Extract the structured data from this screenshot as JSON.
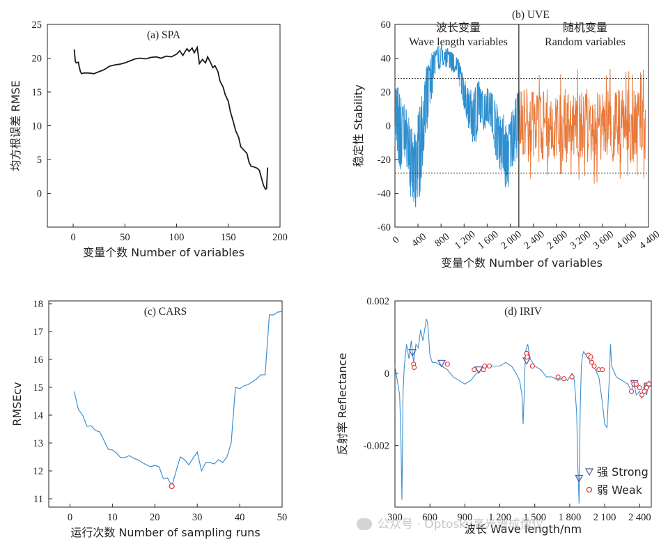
{
  "chart_data": [
    {
      "id": "spa",
      "type": "line",
      "title": "(a) SPA",
      "xlabel": "变量个数 Number of variables",
      "ylabel": "均方根误差 RMSE",
      "xlim": [
        -25,
        200
      ],
      "ylim": [
        -5,
        25
      ],
      "xticks": [
        0,
        50,
        100,
        150,
        200
      ],
      "yticks": [
        0,
        5,
        10,
        15,
        20,
        25
      ],
      "line_color": "#1a1a1a",
      "series": [
        {
          "name": "RMSE",
          "x": [
            1,
            2,
            3,
            5,
            6,
            7,
            8,
            10,
            15,
            20,
            25,
            30,
            35,
            40,
            45,
            50,
            55,
            60,
            65,
            70,
            75,
            80,
            85,
            90,
            95,
            100,
            103,
            106,
            110,
            112,
            115,
            117,
            120,
            122,
            125,
            128,
            130,
            133,
            135,
            137,
            140,
            142,
            145,
            147,
            150,
            152,
            155,
            157,
            160,
            162,
            165,
            168,
            170,
            172,
            175,
            178,
            180,
            182,
            184,
            186,
            187,
            188
          ],
          "y": [
            21.3,
            19.5,
            19.3,
            19.4,
            18.6,
            18.0,
            17.7,
            17.8,
            17.8,
            17.7,
            18.0,
            18.3,
            18.8,
            19.0,
            19.1,
            19.3,
            19.6,
            19.9,
            20.0,
            19.9,
            20.1,
            20.2,
            20.0,
            20.3,
            20.2,
            20.6,
            21.1,
            20.4,
            21.4,
            21.0,
            21.5,
            20.8,
            21.6,
            19.2,
            19.8,
            19.3,
            20.2,
            19.3,
            18.6,
            18.9,
            18.0,
            16.6,
            15.7,
            14.6,
            13.6,
            12.1,
            10.5,
            9.3,
            8.3,
            6.9,
            6.4,
            5.9,
            4.6,
            4.0,
            3.9,
            3.7,
            3.4,
            2.3,
            1.2,
            0.6,
            0.7,
            3.8
          ]
        }
      ]
    },
    {
      "id": "uve",
      "type": "line",
      "title": "(b) UVE",
      "xlabel": "变量个数 Number of variables",
      "ylabel": "稳定性 Stability",
      "xlim": [
        0,
        4400
      ],
      "ylim": [
        -60,
        60
      ],
      "xticks": [
        0,
        400,
        800,
        1200,
        1600,
        2000,
        2400,
        2800,
        3200,
        3600,
        4000,
        4400
      ],
      "xtick_labels": [
        "0",
        "400",
        "800",
        "1 200",
        "1 600",
        "2 000",
        "2 400",
        "2 800",
        "3 200",
        "3 600",
        "4 000",
        "4 400"
      ],
      "yticks": [
        -60,
        -40,
        -20,
        0,
        20,
        40,
        60
      ],
      "divider_x": 2150,
      "thresholds": [
        28,
        -28
      ],
      "region_labels": [
        {
          "zh": "波长变量",
          "en": "Wave length variables"
        },
        {
          "zh": "随机变量",
          "en": "Random variables"
        }
      ],
      "series": [
        {
          "name": "Wave length variables",
          "color": "#2e8fd0",
          "x_range": [
            0,
            2150
          ],
          "envelope_x": [
            0,
            50,
            100,
            150,
            200,
            250,
            300,
            350,
            400,
            450,
            500,
            550,
            600,
            650,
            700,
            750,
            800,
            850,
            900,
            950,
            1000,
            1050,
            1100,
            1150,
            1200,
            1250,
            1300,
            1350,
            1400,
            1450,
            1500,
            1550,
            1600,
            1650,
            1700,
            1750,
            1800,
            1850,
            1900,
            1950,
            2000,
            2050,
            2100,
            2150
          ],
          "envelope_low": [
            -15,
            -25,
            -30,
            -18,
            -22,
            -38,
            -48,
            -52,
            -45,
            -40,
            -15,
            -6,
            10,
            18,
            30,
            32,
            35,
            36,
            33,
            34,
            30,
            33,
            26,
            20,
            8,
            2,
            -5,
            -12,
            -10,
            -5,
            0,
            -3,
            2,
            0,
            -10,
            -18,
            -28,
            -30,
            -35,
            -42,
            -30,
            -25,
            -20,
            -18
          ],
          "envelope_high": [
            30,
            25,
            18,
            15,
            10,
            5,
            -2,
            -5,
            8,
            15,
            25,
            35,
            40,
            45,
            46,
            48,
            48,
            46,
            47,
            44,
            45,
            42,
            40,
            34,
            28,
            25,
            22,
            20,
            25,
            28,
            22,
            20,
            25,
            22,
            20,
            15,
            10,
            12,
            5,
            0,
            5,
            15,
            20,
            22
          ]
        },
        {
          "name": "Random variables",
          "color": "#e8793a",
          "x_range": [
            2150,
            4350
          ],
          "amplitude_typical": 22,
          "amplitude_max": 35
        }
      ]
    },
    {
      "id": "cars",
      "type": "line",
      "title": "(c) CARS",
      "xlabel": "运行次数 Number of sampling runs",
      "ylabel": "RMSEcv",
      "xlim": [
        -5,
        50
      ],
      "ylim": [
        10.7,
        18.1
      ],
      "xticks": [
        0,
        10,
        20,
        30,
        40,
        50
      ],
      "yticks": [
        11,
        12,
        13,
        14,
        15,
        16,
        17,
        18
      ],
      "line_color": "#3a8fd0",
      "min_marker": {
        "x": 24,
        "y": 11.45,
        "color": "#e03030"
      },
      "series": [
        {
          "name": "RMSEcv",
          "x": [
            1,
            2,
            3,
            4,
            5,
            6,
            7,
            8,
            9,
            10,
            11,
            12,
            13,
            14,
            15,
            16,
            17,
            18,
            19,
            20,
            21,
            22,
            23,
            24,
            25,
            26,
            27,
            28,
            29,
            30,
            31,
            32,
            33,
            34,
            35,
            36,
            37,
            38,
            39,
            40,
            41,
            42,
            43,
            44,
            45,
            46,
            47,
            48,
            49,
            50
          ],
          "y": [
            14.85,
            14.2,
            14.0,
            13.6,
            13.62,
            13.45,
            13.4,
            13.1,
            12.78,
            12.75,
            12.63,
            12.47,
            12.48,
            12.55,
            12.45,
            12.4,
            12.3,
            12.22,
            12.15,
            12.2,
            12.15,
            11.72,
            11.75,
            11.45,
            11.98,
            12.5,
            12.4,
            12.22,
            12.45,
            12.68,
            12.0,
            12.3,
            12.3,
            12.25,
            12.4,
            12.3,
            12.5,
            13.0,
            15.0,
            14.95,
            15.05,
            15.1,
            15.2,
            15.3,
            15.45,
            15.45,
            17.6,
            17.6,
            17.7,
            17.72
          ]
        }
      ]
    },
    {
      "id": "iriv",
      "type": "line",
      "title": "(d) IRIV",
      "xlabel": "波长 Wave length/nm",
      "ylabel": "反射率 Reflectance",
      "xlim": [
        300,
        2500
      ],
      "ylim": [
        -0.0037,
        0.002
      ],
      "xticks": [
        300,
        600,
        900,
        1200,
        1500,
        1800,
        2100,
        2400
      ],
      "xtick_labels": [
        "300",
        "600",
        "900",
        "1 200",
        "1 500",
        "1 800",
        "2 100",
        "2 400"
      ],
      "yticks": [
        -0.002,
        0,
        0.002
      ],
      "ytick_labels": [
        "-0.002",
        "0",
        "0.002"
      ],
      "line_color": "#3a8fd0",
      "legend": [
        {
          "label": "强 Strong",
          "marker": "triangle-down",
          "color": "#555599"
        },
        {
          "label": "弱 Weak",
          "marker": "circle",
          "color": "#e03030"
        }
      ],
      "series": [
        {
          "name": "Reflectance",
          "x": [
            300,
            320,
            340,
            350,
            360,
            370,
            380,
            400,
            420,
            440,
            460,
            480,
            500,
            520,
            540,
            560,
            570,
            580,
            590,
            600,
            620,
            650,
            700,
            750,
            800,
            850,
            900,
            950,
            1000,
            1050,
            1100,
            1150,
            1200,
            1250,
            1300,
            1340,
            1370,
            1390,
            1400,
            1410,
            1420,
            1440,
            1460,
            1500,
            1550,
            1600,
            1650,
            1700,
            1750,
            1780,
            1800,
            1820,
            1840,
            1860,
            1870,
            1880,
            1890,
            1900,
            1910,
            1920,
            1940,
            1960,
            1980,
            2000,
            2020,
            2050,
            2080,
            2100,
            2120,
            2130,
            2140,
            2150,
            2160,
            2200,
            2250,
            2300,
            2330,
            2350,
            2370,
            2400,
            2420,
            2440,
            2460,
            2480,
            2500
          ],
          "y": [
            0.0002,
            -0.0002,
            -0.0006,
            -0.0016,
            -0.0035,
            -0.0005,
            0.0002,
            0.0008,
            0.0004,
            0.0009,
            0.0003,
            0.0008,
            0.0007,
            0.0012,
            0.0009,
            0.0013,
            0.0015,
            0.0014,
            0.001,
            0.0005,
            0.0003,
            0.0003,
            0.0002,
            0.0001,
            -0.0001,
            -0.0002,
            -0.0003,
            -0.0002,
            0.0,
            0.0001,
            0.0002,
            0.0002,
            0.0002,
            0.0003,
            0.0002,
            0.0,
            -0.0002,
            -0.0006,
            -0.0014,
            -0.0005,
            0.0006,
            0.0008,
            0.0004,
            0.0002,
            0.0001,
            -0.0001,
            -0.0001,
            -0.0002,
            -0.0001,
            -0.0002,
            -0.0001,
            0.0,
            -0.0002,
            -0.0011,
            -0.0026,
            -0.0036,
            -0.0009,
            0.0002,
            0.0005,
            0.0006,
            0.0005,
            0.0004,
            0.0003,
            0.0002,
            0.0001,
            -0.0001,
            -0.0008,
            -0.0014,
            -0.0015,
            -0.0008,
            -0.0001,
            0.0008,
            0.0002,
            -0.0001,
            -0.0002,
            -0.0003,
            -0.0005,
            -0.0002,
            -0.0006,
            -0.0005,
            -0.0007,
            -0.0003,
            -0.0006,
            -0.0002,
            -0.0004
          ]
        }
      ],
      "strong_points": [
        {
          "x": 450,
          "y": 0.00058
        },
        {
          "x": 700,
          "y": 0.00028
        },
        {
          "x": 1020,
          "y": 0.0001
        },
        {
          "x": 1430,
          "y": 0.00035
        },
        {
          "x": 1880,
          "y": -0.0029
        },
        {
          "x": 2355,
          "y": -0.00028
        },
        {
          "x": 2470,
          "y": -0.00035
        }
      ],
      "weak_points": [
        {
          "x": 460,
          "y": 0.00025
        },
        {
          "x": 465,
          "y": 0.00016
        },
        {
          "x": 750,
          "y": 0.00025
        },
        {
          "x": 980,
          "y": 0.0001
        },
        {
          "x": 1060,
          "y": 0.0001
        },
        {
          "x": 1070,
          "y": 0.0002
        },
        {
          "x": 1110,
          "y": 0.0002
        },
        {
          "x": 1430,
          "y": 0.00055
        },
        {
          "x": 1435,
          "y": 0.00045
        },
        {
          "x": 1480,
          "y": 0.0002
        },
        {
          "x": 1700,
          "y": -0.0001
        },
        {
          "x": 1750,
          "y": -0.00015
        },
        {
          "x": 1820,
          "y": -0.0001
        },
        {
          "x": 1960,
          "y": 0.0005
        },
        {
          "x": 1980,
          "y": 0.00045
        },
        {
          "x": 1990,
          "y": 0.0003
        },
        {
          "x": 2010,
          "y": 0.0002
        },
        {
          "x": 2050,
          "y": 0.0001
        },
        {
          "x": 2080,
          "y": 0.0001
        },
        {
          "x": 2330,
          "y": -0.0005
        },
        {
          "x": 2350,
          "y": -0.0003
        },
        {
          "x": 2370,
          "y": -0.0003
        },
        {
          "x": 2400,
          "y": -0.0004
        },
        {
          "x": 2420,
          "y": -0.0006
        },
        {
          "x": 2440,
          "y": -0.0005
        },
        {
          "x": 2460,
          "y": -0.0004
        },
        {
          "x": 2480,
          "y": -0.0003
        }
      ]
    }
  ],
  "watermark": "公众号 · Optosky高光谱成像仪"
}
